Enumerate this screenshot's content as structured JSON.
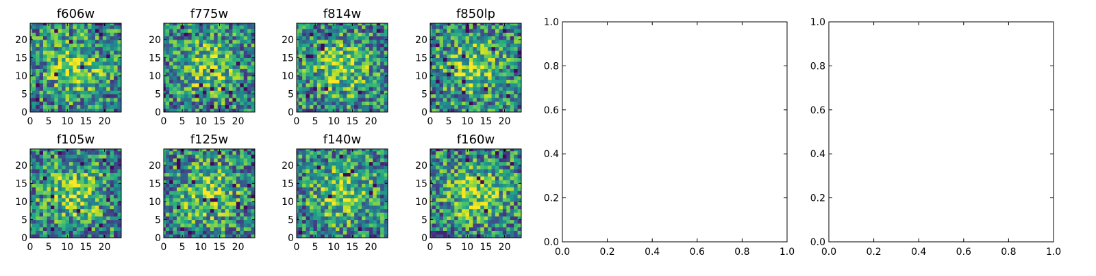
{
  "chart_data": [
    {
      "type": "heatmap",
      "title": "f606w",
      "seed": 11,
      "xticks": [
        "0",
        "5",
        "10",
        "15",
        "20"
      ],
      "yticks": [
        "0",
        "5",
        "10",
        "15",
        "20"
      ],
      "xlim": [
        0,
        24
      ],
      "ylim": [
        0,
        24
      ],
      "colormap": "viridis"
    },
    {
      "type": "heatmap",
      "title": "f775w",
      "seed": 23,
      "xticks": [
        "0",
        "5",
        "10",
        "15",
        "20"
      ],
      "yticks": [
        "0",
        "5",
        "10",
        "15",
        "20"
      ],
      "xlim": [
        0,
        24
      ],
      "ylim": [
        0,
        24
      ],
      "colormap": "viridis"
    },
    {
      "type": "heatmap",
      "title": "f814w",
      "seed": 37,
      "xticks": [
        "0",
        "5",
        "10",
        "15",
        "20"
      ],
      "yticks": [
        "0",
        "5",
        "10",
        "15",
        "20"
      ],
      "xlim": [
        0,
        24
      ],
      "ylim": [
        0,
        24
      ],
      "colormap": "viridis"
    },
    {
      "type": "heatmap",
      "title": "f850lp",
      "seed": 41,
      "xticks": [
        "0",
        "5",
        "10",
        "15",
        "20"
      ],
      "yticks": [
        "0",
        "5",
        "10",
        "15",
        "20"
      ],
      "xlim": [
        0,
        24
      ],
      "ylim": [
        0,
        24
      ],
      "colormap": "viridis"
    },
    {
      "type": "heatmap",
      "title": "f105w",
      "seed": 53,
      "xticks": [
        "0",
        "5",
        "10",
        "15",
        "20"
      ],
      "yticks": [
        "0",
        "5",
        "10",
        "15",
        "20"
      ],
      "xlim": [
        0,
        24
      ],
      "ylim": [
        0,
        24
      ],
      "colormap": "viridis"
    },
    {
      "type": "heatmap",
      "title": "f125w",
      "seed": 67,
      "xticks": [
        "0",
        "5",
        "10",
        "15",
        "20"
      ],
      "yticks": [
        "0",
        "5",
        "10",
        "15",
        "20"
      ],
      "xlim": [
        0,
        24
      ],
      "ylim": [
        0,
        24
      ],
      "colormap": "viridis"
    },
    {
      "type": "heatmap",
      "title": "f140w",
      "seed": 79,
      "xticks": [
        "0",
        "5",
        "10",
        "15",
        "20"
      ],
      "yticks": [
        "0",
        "5",
        "10",
        "15",
        "20"
      ],
      "xlim": [
        0,
        24
      ],
      "ylim": [
        0,
        24
      ],
      "colormap": "viridis"
    },
    {
      "type": "heatmap",
      "title": "f160w",
      "seed": 97,
      "xticks": [
        "0",
        "5",
        "10",
        "15",
        "20"
      ],
      "yticks": [
        "0",
        "5",
        "10",
        "15",
        "20"
      ],
      "xlim": [
        0,
        24
      ],
      "ylim": [
        0,
        24
      ],
      "colormap": "viridis"
    },
    {
      "type": "scatter",
      "title": "",
      "x": [],
      "y": [],
      "xlim": [
        0,
        1
      ],
      "ylim": [
        0,
        1
      ],
      "xticks": [
        "0.0",
        "0.2",
        "0.4",
        "0.6",
        "0.8",
        "1.0"
      ],
      "yticks": [
        "0.0",
        "0.2",
        "0.4",
        "0.6",
        "0.8",
        "1.0"
      ]
    },
    {
      "type": "scatter",
      "title": "",
      "x": [],
      "y": [],
      "xlim": [
        0,
        1
      ],
      "ylim": [
        0,
        1
      ],
      "xticks": [
        "0.0",
        "0.2",
        "0.4",
        "0.6",
        "0.8",
        "1.0"
      ],
      "yticks": [
        "0.0",
        "0.2",
        "0.4",
        "0.6",
        "0.8",
        "1.0"
      ]
    }
  ],
  "colors": {
    "axis": "#000000",
    "background": "#ffffff"
  }
}
